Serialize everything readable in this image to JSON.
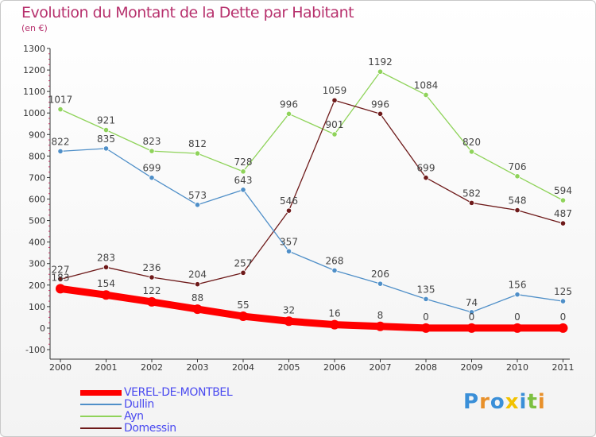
{
  "chart_data": {
    "type": "line",
    "title": "Evolution du Montant de la Dette par Habitant",
    "subtitle": "(en €)",
    "categories": [
      "2000",
      "2001",
      "2002",
      "2003",
      "2004",
      "2005",
      "2006",
      "2007",
      "2008",
      "2009",
      "2010",
      "2011"
    ],
    "ylim": [
      -100,
      1300
    ],
    "yticks": [
      -100,
      0,
      100,
      200,
      300,
      400,
      500,
      600,
      700,
      800,
      900,
      1000,
      1100,
      1200,
      1300
    ],
    "grid": false,
    "legend_position": "bottom-left",
    "series": [
      {
        "name": "VEREL-DE-MONTBEL",
        "color": "#ff0000",
        "values": [
          183,
          154,
          122,
          88,
          55,
          32,
          16,
          8,
          0,
          0,
          0,
          0
        ]
      },
      {
        "name": "Dullin",
        "color": "#4f8fc8",
        "values": [
          822,
          835,
          699,
          573,
          643,
          357,
          268,
          206,
          135,
          74,
          156,
          125
        ]
      },
      {
        "name": "Ayn",
        "color": "#8fd35a",
        "values": [
          1017,
          921,
          823,
          812,
          728,
          996,
          901,
          1192,
          1084,
          820,
          706,
          594
        ]
      },
      {
        "name": "Domessin",
        "color": "#6e1a1a",
        "values": [
          227,
          283,
          236,
          204,
          257,
          546,
          1059,
          996,
          699,
          582,
          548,
          487
        ]
      }
    ]
  },
  "logo": {
    "text": "Proxiti",
    "letters": [
      "P",
      "r",
      "o",
      "x",
      "i",
      "t",
      "i"
    ],
    "colors": [
      "#3a8fd8",
      "#e8902a",
      "#3a8fd8",
      "#f2c200",
      "#3a8fd8",
      "#7cc040",
      "#e8902a"
    ]
  }
}
